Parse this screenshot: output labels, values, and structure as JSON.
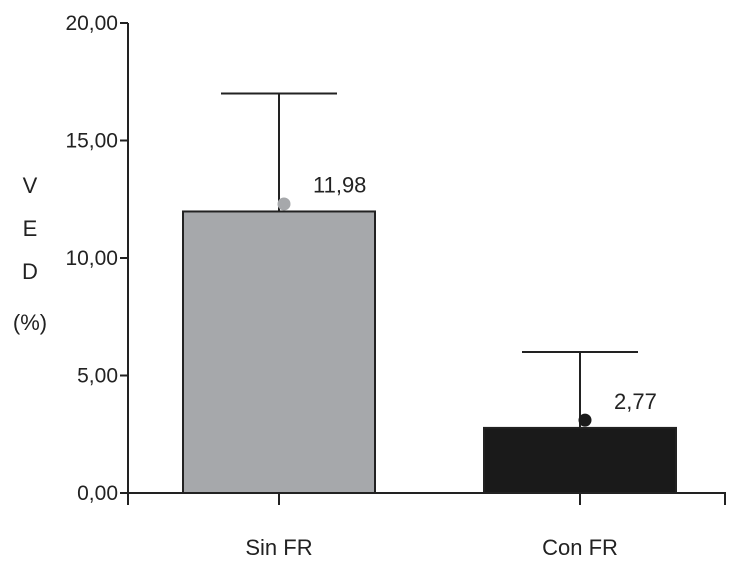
{
  "chart_data": {
    "type": "bar",
    "categories": [
      "Sin FR",
      "Con FR"
    ],
    "values": [
      11.98,
      2.77
    ],
    "error_upper": [
      17.0,
      6.0
    ],
    "point_markers": [
      12.3,
      3.1
    ],
    "data_labels": [
      "11,98",
      "2,77"
    ],
    "bar_colors": [
      "#a6a8ab",
      "#1a1a1a"
    ],
    "marker_colors": [
      "#a6a8ab",
      "#1a1a1a"
    ],
    "ylabel_lines": [
      "V",
      "E",
      "D",
      "(%)"
    ],
    "ylim": [
      0,
      20
    ],
    "yticks": [
      0,
      5,
      10,
      15,
      20
    ],
    "ytick_labels": [
      "0,00",
      "5,00",
      "10,00",
      "15,00",
      "20,00"
    ],
    "grid": false,
    "title": "",
    "xlabel": ""
  }
}
